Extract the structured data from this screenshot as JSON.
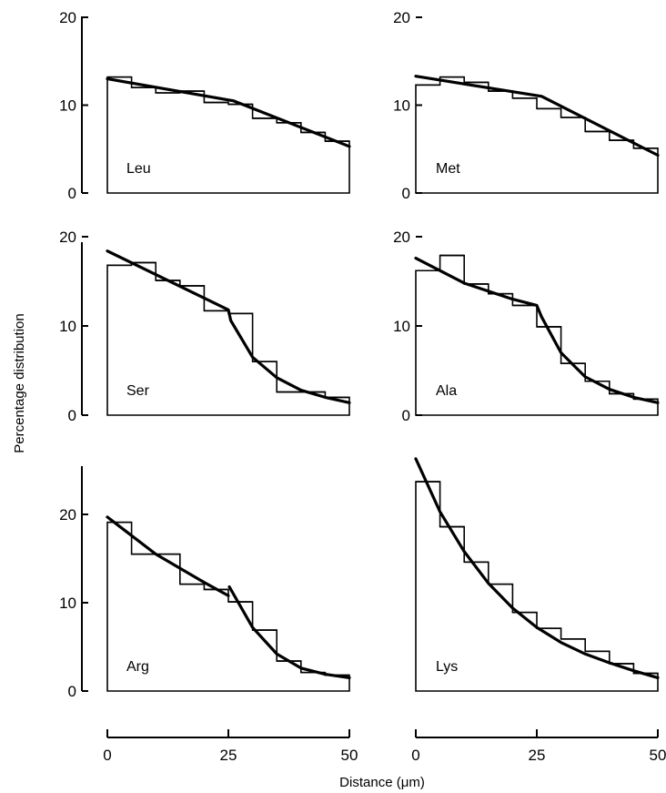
{
  "chart_data": [
    {
      "type": "histogram-with-fitted-curve",
      "label": "Leu",
      "xlim": [
        0,
        50
      ],
      "ylim": [
        0,
        20
      ],
      "yticks": [
        0,
        10,
        20
      ],
      "bin_edges": [
        0,
        5,
        10,
        15,
        20,
        25,
        30,
        35,
        40,
        45,
        50
      ],
      "values": [
        13.2,
        12.0,
        11.4,
        11.6,
        10.3,
        10.1,
        8.5,
        8.0,
        6.9,
        5.9
      ],
      "fit": [
        [
          0,
          13.0
        ],
        [
          26,
          10.5
        ],
        [
          50,
          5.3
        ]
      ]
    },
    {
      "type": "histogram-with-fitted-curve",
      "label": "Met",
      "xlim": [
        0,
        50
      ],
      "ylim": [
        0,
        20
      ],
      "yticks": [
        0,
        10,
        20
      ],
      "bin_edges": [
        0,
        5,
        10,
        15,
        20,
        25,
        30,
        35,
        40,
        45,
        50
      ],
      "values": [
        12.3,
        13.2,
        12.6,
        11.6,
        10.8,
        9.6,
        8.6,
        7.0,
        6.0,
        5.1
      ],
      "fit": [
        [
          0,
          13.3
        ],
        [
          26,
          11.0
        ],
        [
          50,
          4.3
        ]
      ]
    },
    {
      "type": "histogram-with-fitted-curve",
      "label": "Ser",
      "xlim": [
        0,
        50
      ],
      "ylim": [
        0,
        20
      ],
      "yticks": [
        0,
        10,
        20
      ],
      "bin_edges": [
        0,
        5,
        10,
        15,
        20,
        25,
        30,
        35,
        40,
        45,
        50
      ],
      "values": [
        16.8,
        17.1,
        15.1,
        14.5,
        11.7,
        11.4,
        6.0,
        2.6,
        2.6,
        2.0
      ],
      "fit": [
        [
          0,
          18.4
        ],
        [
          25,
          11.8
        ],
        [
          25.5,
          10.6
        ],
        [
          30,
          6.5
        ],
        [
          35,
          4.2
        ],
        [
          40,
          2.8
        ],
        [
          45,
          2.0
        ],
        [
          50,
          1.4
        ]
      ]
    },
    {
      "type": "histogram-with-fitted-curve",
      "label": "Ala",
      "xlim": [
        0,
        50
      ],
      "ylim": [
        0,
        20
      ],
      "yticks": [
        0,
        10,
        20
      ],
      "bin_edges": [
        0,
        5,
        10,
        15,
        20,
        25,
        30,
        35,
        40,
        45,
        50
      ],
      "values": [
        16.2,
        17.9,
        14.7,
        13.6,
        12.3,
        9.9,
        5.8,
        3.8,
        2.4,
        1.8
      ],
      "fit": [
        [
          0,
          17.6
        ],
        [
          10,
          14.8
        ],
        [
          20,
          13.0
        ],
        [
          25,
          12.3
        ],
        [
          26,
          11.0
        ],
        [
          30,
          7.0
        ],
        [
          35,
          4.3
        ],
        [
          40,
          2.9
        ],
        [
          45,
          2.0
        ],
        [
          50,
          1.4
        ]
      ]
    },
    {
      "type": "histogram-with-fitted-curve",
      "label": "Arg",
      "xlim": [
        0,
        50
      ],
      "ylim": [
        0,
        25
      ],
      "yticks": [
        0,
        10,
        20
      ],
      "bin_edges": [
        0,
        5,
        10,
        15,
        20,
        25,
        30,
        35,
        40,
        45,
        50
      ],
      "values": [
        19.1,
        15.5,
        15.5,
        12.1,
        11.5,
        10.1,
        6.9,
        3.4,
        2.1,
        1.8
      ],
      "fit": [
        [
          0,
          19.7
        ],
        [
          10,
          15.5
        ],
        [
          20,
          12.3
        ],
        [
          25,
          10.8
        ],
        [
          25.2,
          11.8
        ],
        [
          30,
          7.2
        ],
        [
          35,
          4.2
        ],
        [
          40,
          2.6
        ],
        [
          45,
          1.9
        ],
        [
          50,
          1.5
        ]
      ]
    },
    {
      "type": "histogram-with-fitted-curve",
      "label": "Lys",
      "xlim": [
        0,
        50
      ],
      "ylim": [
        0,
        25
      ],
      "yticks": [],
      "bin_edges": [
        0,
        5,
        10,
        15,
        20,
        25,
        30,
        35,
        40,
        45,
        50
      ],
      "values": [
        23.7,
        18.6,
        14.6,
        12.1,
        8.9,
        7.1,
        5.9,
        4.5,
        3.1,
        2.0
      ],
      "fit": [
        [
          0,
          26.3
        ],
        [
          5,
          20.3
        ],
        [
          10,
          15.8
        ],
        [
          15,
          12.2
        ],
        [
          20,
          9.4
        ],
        [
          25,
          7.2
        ],
        [
          30,
          5.5
        ],
        [
          35,
          4.2
        ],
        [
          40,
          3.2
        ],
        [
          45,
          2.3
        ],
        [
          50,
          1.5
        ]
      ]
    }
  ],
  "xaxes": [
    {
      "ticks": [
        0,
        25,
        50
      ]
    },
    {
      "ticks": [
        0,
        25,
        50
      ]
    }
  ],
  "labels": {
    "ylabel": "Percentage distribution",
    "xlabel": "Distance (μm)"
  }
}
